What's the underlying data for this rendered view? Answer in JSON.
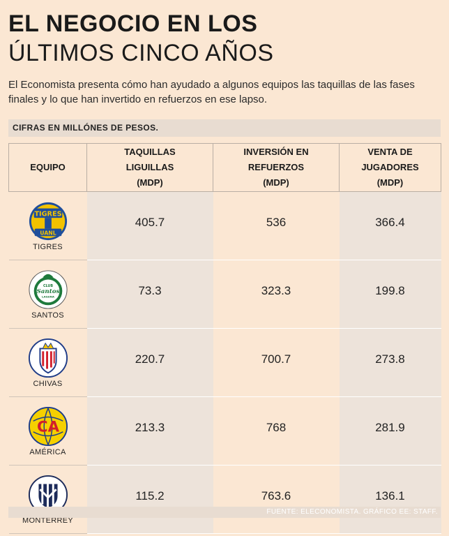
{
  "title_line1": "EL NEGOCIO EN LOS",
  "title_line2": "ÚLTIMOS CINCO AÑOS",
  "subtitle": "El Economista presenta cómo han ayudado a algunos equipos las  taquillas de las fases finales y lo que han invertido en refuerzos en ese  lapso.",
  "units_label": "CIFRAS EN MILLÓNES DE PESOS.",
  "source": "FUENTE: ELECONOMISTA. GRÁFICO EE: STAFF.",
  "chart_data": {
    "type": "table",
    "title": "EL NEGOCIO EN LOS ÚLTIMOS CINCO AÑOS",
    "columns": [
      {
        "line1": "EQUIPO",
        "line2": "",
        "line3": ""
      },
      {
        "line1": "TAQUILLAS",
        "line2": "LIGUILLAS",
        "line3": "(MDP)"
      },
      {
        "line1": "INVERSIÓN EN",
        "line2": "REFUERZOS",
        "line3": "(MDP)"
      },
      {
        "line1": "VENTA DE",
        "line2": "JUGADORES",
        "line3": "(MDP)"
      }
    ],
    "rows": [
      {
        "team": "TIGRES",
        "taquillas": "405.7",
        "inversion": "536",
        "venta": "366.4"
      },
      {
        "team": "SANTOS",
        "taquillas": "73.3",
        "inversion": "323.3",
        "venta": "199.8"
      },
      {
        "team": "CHIVAS",
        "taquillas": "220.7",
        "inversion": "700.7",
        "venta": "273.8"
      },
      {
        "team": "AMÉRICA",
        "taquillas": "213.3",
        "inversion": "768",
        "venta": "281.9"
      },
      {
        "team": "MONTERREY",
        "taquillas": "115.2",
        "inversion": "763.6",
        "venta": "136.1"
      }
    ]
  },
  "logos": {
    "tigres": {
      "top_text": "TIGRES",
      "bottom_text": "UANL",
      "icon": "tigres-logo-icon"
    },
    "santos": {
      "top_text": "CLUB",
      "mid_text": "Santos",
      "bottom_text": "LAGUNA",
      "icon": "santos-logo-icon"
    },
    "chivas": {
      "icon": "chivas-logo-icon"
    },
    "america": {
      "text": "CA",
      "icon": "america-logo-icon"
    },
    "monterrey": {
      "icon": "monterrey-logo-icon"
    }
  },
  "colors": {
    "background": "#fbe7d3",
    "shaded_column": "#ede3da",
    "strip": "#e8dcd1",
    "tigres_yellow": "#f2c200",
    "tigres_blue": "#1f4e9b",
    "santos_green": "#1e7a3c",
    "chivas_red": "#d21f2b",
    "america_yellow": "#f5d000",
    "america_blue": "#1b3c8c",
    "monterrey_navy": "#1c2b5a"
  }
}
